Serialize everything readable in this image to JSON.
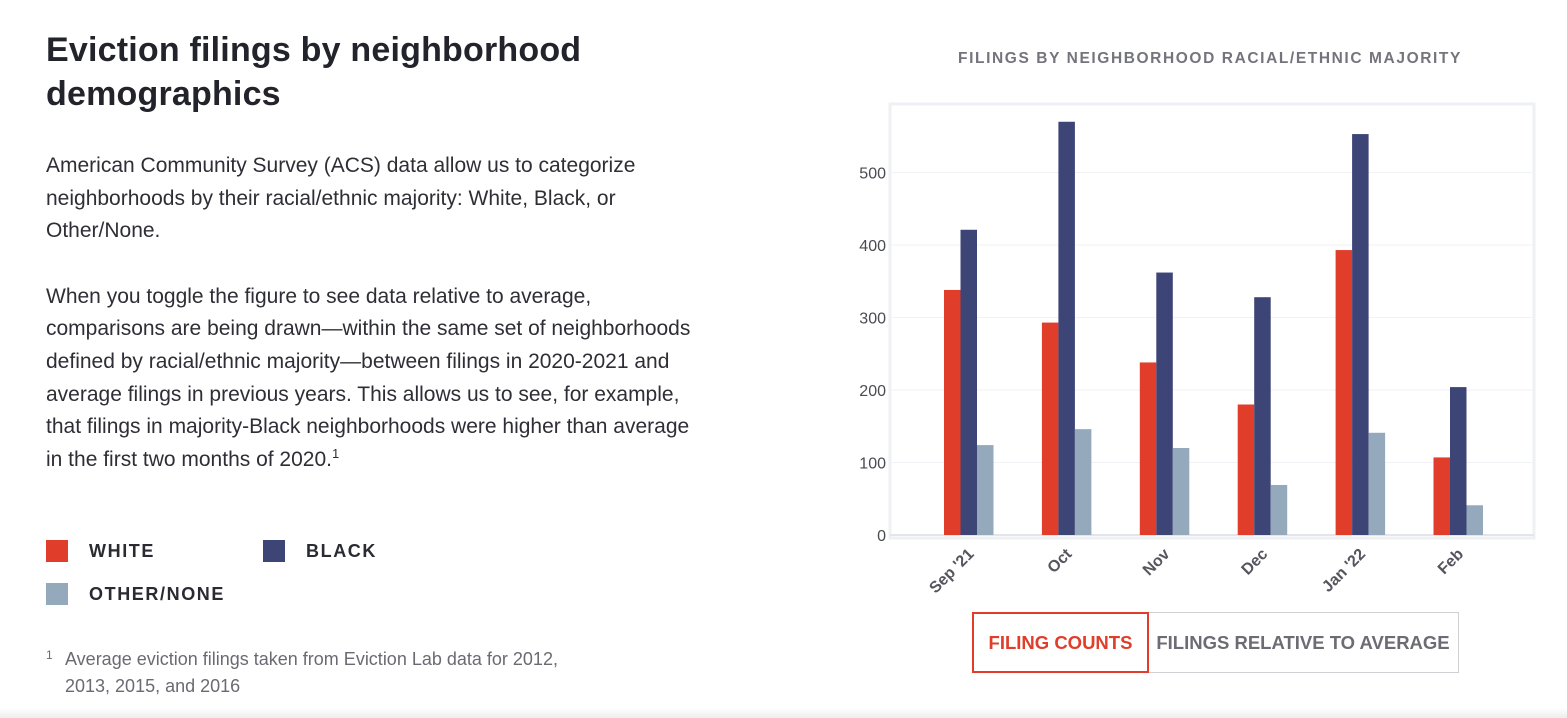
{
  "heading": "Eviction filings by neighborhood demographics",
  "paragraph1": "American Community Survey (ACS) data allow us to categorize neighborhoods by their racial/ethnic majority: White, Black, or Other/None.",
  "paragraph2": "When you toggle the figure to see data relative to average, comparisons are being drawn—within the same set of neighborhoods defined by racial/ethnic majority—between filings in 2020-2021 and average filings in previous years. This allows us to see, for example, that filings in majority-Black neighborhoods were higher than average in the first two months of 2020.",
  "paragraph2_footnote_ref": "1",
  "legend": [
    {
      "label": "WHITE",
      "color": "#e03d2a"
    },
    {
      "label": "BLACK",
      "color": "#3d4476"
    },
    {
      "label": "OTHER/NONE",
      "color": "#94a9bc"
    }
  ],
  "footnote": {
    "marker": "1",
    "text": "Average eviction filings taken from Eviction Lab data for 2012, 2013, 2015, and 2016"
  },
  "toggle": {
    "options": [
      "FILING COUNTS",
      "FILINGS RELATIVE TO AVERAGE"
    ],
    "selected": "FILING COUNTS"
  },
  "chart_data": {
    "type": "bar",
    "title": "FILINGS BY NEIGHBORHOOD RACIAL/ETHNIC MAJORITY",
    "xlabel": "",
    "ylabel": "",
    "categories": [
      "Sep '21",
      "Oct",
      "Nov",
      "Dec",
      "Jan '22",
      "Feb"
    ],
    "series": [
      {
        "name": "White",
        "color": "#e03d2a",
        "values": [
          338,
          293,
          238,
          180,
          393,
          107
        ]
      },
      {
        "name": "Black",
        "color": "#3d4476",
        "values": [
          421,
          570,
          362,
          328,
          553,
          204
        ]
      },
      {
        "name": "Other/None",
        "color": "#94a9bc",
        "values": [
          124,
          146,
          120,
          69,
          141,
          41
        ]
      }
    ],
    "yticks": [
      0,
      100,
      200,
      300,
      400,
      500
    ],
    "ylim": [
      0,
      600
    ],
    "grid": true,
    "legend": "left panel"
  }
}
